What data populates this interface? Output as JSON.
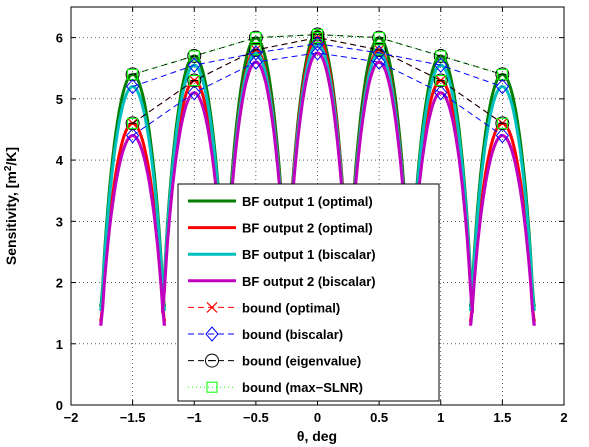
{
  "chart_data": {
    "type": "line",
    "xlabel": "θ, deg",
    "ylabel_prefix": "Sensitivity, [m",
    "ylabel_sup": "2",
    "ylabel_suffix": "/K]",
    "xlim": [
      -2,
      2
    ],
    "ylim": [
      0,
      6.5
    ],
    "xticks": [
      -2,
      -1.5,
      -1,
      -0.5,
      0,
      0.5,
      1,
      1.5,
      2
    ],
    "xtick_labels": [
      "−2",
      "−1.5",
      "−1",
      "−0.5",
      "0",
      "0.5",
      "1",
      "1.5",
      "2"
    ],
    "yticks": [
      0,
      1,
      2,
      3,
      4,
      5,
      6
    ],
    "ytick_labels": [
      "0",
      "1",
      "2",
      "3",
      "4",
      "5",
      "6"
    ],
    "grid": true,
    "legend_position": "lower-center",
    "beam_centers": [
      -1.5,
      -1.0,
      -0.5,
      0.0,
      0.5,
      1.0,
      1.5
    ],
    "series": [
      {
        "name": "BF output 1 (optimal)",
        "color": "#007f00",
        "style": "solid",
        "width": 3,
        "beams": [
          {
            "center": -1.5,
            "peak": 5.4,
            "half_width": 0.27
          },
          {
            "center": -1.0,
            "peak": 5.7,
            "half_width": 0.27
          },
          {
            "center": -0.5,
            "peak": 6.0,
            "half_width": 0.27
          },
          {
            "center": 0.0,
            "peak": 6.1,
            "half_width": 0.27
          },
          {
            "center": 0.5,
            "peak": 6.0,
            "half_width": 0.27
          },
          {
            "center": 1.0,
            "peak": 5.7,
            "half_width": 0.27
          },
          {
            "center": 1.5,
            "peak": 5.4,
            "half_width": 0.27
          }
        ]
      },
      {
        "name": "BF output 2 (optimal)",
        "color": "#ff0000",
        "style": "solid",
        "width": 3,
        "beams": [
          {
            "center": -1.5,
            "peak": 4.6,
            "half_width": 0.27
          },
          {
            "center": -1.0,
            "peak": 5.3,
            "half_width": 0.27
          },
          {
            "center": -0.5,
            "peak": 5.8,
            "half_width": 0.27
          },
          {
            "center": 0.0,
            "peak": 6.0,
            "half_width": 0.27
          },
          {
            "center": 0.5,
            "peak": 5.8,
            "half_width": 0.27
          },
          {
            "center": 1.0,
            "peak": 5.3,
            "half_width": 0.27
          },
          {
            "center": 1.5,
            "peak": 4.6,
            "half_width": 0.27
          }
        ]
      },
      {
        "name": "BF output 1 (biscalar)",
        "color": "#00bfbf",
        "style": "solid",
        "width": 3,
        "beams": [
          {
            "center": -1.5,
            "peak": 5.2,
            "half_width": 0.27
          },
          {
            "center": -1.0,
            "peak": 5.55,
            "half_width": 0.27
          },
          {
            "center": -0.5,
            "peak": 5.75,
            "half_width": 0.27
          },
          {
            "center": 0.0,
            "peak": 5.9,
            "half_width": 0.27
          },
          {
            "center": 0.5,
            "peak": 5.75,
            "half_width": 0.27
          },
          {
            "center": 1.0,
            "peak": 5.55,
            "half_width": 0.27
          },
          {
            "center": 1.5,
            "peak": 5.2,
            "half_width": 0.27
          }
        ]
      },
      {
        "name": "BF output 2 (biscalar)",
        "color": "#bf00bf",
        "style": "solid",
        "width": 3,
        "beams": [
          {
            "center": -1.5,
            "peak": 4.4,
            "half_width": 0.27
          },
          {
            "center": -1.0,
            "peak": 5.1,
            "half_width": 0.27
          },
          {
            "center": -0.5,
            "peak": 5.6,
            "half_width": 0.27
          },
          {
            "center": 0.0,
            "peak": 5.75,
            "half_width": 0.27
          },
          {
            "center": 0.5,
            "peak": 5.6,
            "half_width": 0.27
          },
          {
            "center": 1.0,
            "peak": 5.1,
            "half_width": 0.27
          },
          {
            "center": 1.5,
            "peak": 4.4,
            "half_width": 0.27
          }
        ]
      },
      {
        "name": "bound (optimal)",
        "color": "#ff0000",
        "style": "dashed",
        "width": 1,
        "marker": "x",
        "x": [
          -1.5,
          -1.0,
          -0.5,
          0.0,
          0.5,
          1.0,
          1.5
        ],
        "y": [
          4.6,
          5.3,
          5.8,
          6.0,
          5.8,
          5.3,
          4.6
        ]
      },
      {
        "name": "bound (biscalar)",
        "color": "#0000ff",
        "style": "dashed",
        "width": 1,
        "marker": "diamond",
        "x": [
          -1.5,
          -1.0,
          -0.5,
          0.0,
          0.5,
          1.0,
          1.5
        ],
        "y": [
          4.4,
          5.1,
          5.6,
          5.75,
          5.6,
          5.1,
          4.4
        ]
      },
      {
        "name": "bound (eigenvalue)",
        "color": "#000000",
        "style": "dashed",
        "width": 1,
        "marker": "circle",
        "x": [
          -1.5,
          -1.0,
          -0.5,
          0.0,
          0.5,
          1.0,
          1.5
        ],
        "y": [
          5.4,
          5.7,
          6.0,
          6.05,
          6.0,
          5.7,
          5.4
        ]
      },
      {
        "name": "bound (max−SLNR)",
        "color": "#00ff00",
        "style": "dotted",
        "width": 1,
        "marker": "square",
        "x": [
          -1.5,
          -1.0,
          -0.5,
          0.0,
          0.5,
          1.0,
          1.5
        ],
        "y": [
          5.4,
          5.7,
          6.0,
          6.05,
          6.0,
          5.7,
          5.4
        ]
      }
    ],
    "eigen_bound_2": {
      "x": [
        -1.5,
        -1.0,
        -0.5,
        0.0,
        0.5,
        1.0,
        1.5
      ],
      "y": [
        4.6,
        5.3,
        5.8,
        6.0,
        5.8,
        5.3,
        4.6
      ]
    },
    "biscalar_bound_1": {
      "x": [
        -1.5,
        -1.0,
        -0.5,
        0.0,
        0.5,
        1.0,
        1.5
      ],
      "y": [
        5.2,
        5.55,
        5.75,
        5.9,
        5.75,
        5.55,
        5.2
      ]
    }
  }
}
